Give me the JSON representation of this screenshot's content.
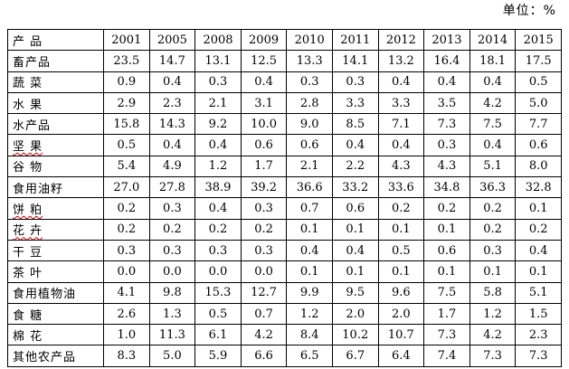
{
  "unit_label": "单位：%",
  "table": {
    "corner_label": "产  品",
    "years": [
      "2001",
      "2005",
      "2008",
      "2009",
      "2010",
      "2011",
      "2012",
      "2013",
      "2014",
      "2015"
    ],
    "rows": [
      {
        "label": "畜产品",
        "values": [
          "23.5",
          "14.7",
          "13.1",
          "12.5",
          "13.3",
          "14.1",
          "13.2",
          "16.4",
          "18.1",
          "17.5"
        ]
      },
      {
        "label": "蔬  菜",
        "values": [
          "0.9",
          "0.4",
          "0.3",
          "0.4",
          "0.3",
          "0.3",
          "0.4",
          "0.4",
          "0.4",
          "0.5"
        ]
      },
      {
        "label": "水  果",
        "values": [
          "2.9",
          "2.3",
          "2.1",
          "3.1",
          "2.8",
          "3.3",
          "3.3",
          "3.5",
          "4.2",
          "5.0"
        ]
      },
      {
        "label": "水产品",
        "values": [
          "15.8",
          "14.3",
          "9.2",
          "10.0",
          "9.0",
          "8.5",
          "7.1",
          "7.3",
          "7.5",
          "7.7"
        ]
      },
      {
        "label": "坚  果",
        "values": [
          "0.5",
          "0.4",
          "0.4",
          "0.6",
          "0.6",
          "0.4",
          "0.4",
          "0.3",
          "0.4",
          "0.6"
        ]
      },
      {
        "label": "谷  物",
        "values": [
          "5.4",
          "4.9",
          "1.2",
          "1.7",
          "2.1",
          "2.2",
          "4.3",
          "4.3",
          "5.1",
          "8.0"
        ]
      },
      {
        "label": "食用油籽",
        "values": [
          "27.0",
          "27.8",
          "38.9",
          "39.2",
          "36.6",
          "33.2",
          "33.6",
          "34.8",
          "36.3",
          "32.8"
        ]
      },
      {
        "label": "饼  粕",
        "values": [
          "0.2",
          "0.3",
          "0.4",
          "0.3",
          "0.7",
          "0.6",
          "0.2",
          "0.2",
          "0.2",
          "0.1"
        ]
      },
      {
        "label": "花  卉",
        "values": [
          "0.2",
          "0.2",
          "0.2",
          "0.2",
          "0.1",
          "0.1",
          "0.1",
          "0.1",
          "0.2",
          "0.2"
        ]
      },
      {
        "label": "干  豆",
        "values": [
          "0.3",
          "0.3",
          "0.3",
          "0.3",
          "0.4",
          "0.4",
          "0.5",
          "0.6",
          "0.3",
          "0.4"
        ]
      },
      {
        "label": "茶  叶",
        "values": [
          "0.0",
          "0.0",
          "0.0",
          "0.0",
          "0.1",
          "0.1",
          "0.1",
          "0.1",
          "0.1",
          "0.1"
        ]
      },
      {
        "label": "食用植物油",
        "values": [
          "4.1",
          "9.8",
          "15.3",
          "12.7",
          "9.9",
          "9.5",
          "9.6",
          "7.5",
          "5.8",
          "5.1"
        ]
      },
      {
        "label": "食  糖",
        "values": [
          "2.6",
          "1.3",
          "0.5",
          "0.7",
          "1.2",
          "2.0",
          "2.0",
          "1.7",
          "1.2",
          "1.5"
        ]
      },
      {
        "label": "棉  花",
        "values": [
          "1.0",
          "11.3",
          "6.1",
          "4.2",
          "8.4",
          "10.2",
          "10.7",
          "7.3",
          "4.2",
          "2.3"
        ]
      },
      {
        "label": "其他农产品",
        "values": [
          "8.3",
          "5.0",
          "5.9",
          "6.6",
          "6.5",
          "6.7",
          "6.4",
          "7.4",
          "7.3",
          "7.3"
        ]
      }
    ]
  }
}
